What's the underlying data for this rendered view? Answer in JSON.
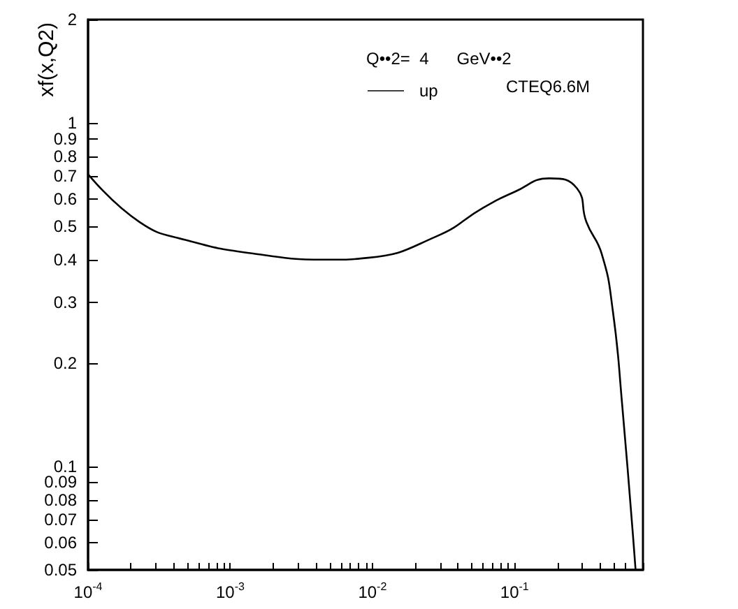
{
  "chart_data": {
    "type": "line",
    "ylabel": "xf(x,Q2)",
    "annotations": [
      "Q••2=  4      GeV••2",
      "CTEQ6.6M"
    ],
    "series": [
      {
        "name": "up",
        "color": "#000000",
        "x": [
          0.0001,
          0.00023,
          0.00049,
          0.0015,
          0.005,
          0.0093,
          0.029,
          0.06,
          0.1,
          0.176,
          0.275,
          0.32,
          0.41,
          0.49,
          0.57,
          0.71
        ],
        "values": [
          0.71,
          0.515,
          0.456,
          0.416,
          0.4,
          0.405,
          0.47,
          0.566,
          0.63,
          0.69,
          0.645,
          0.515,
          0.416,
          0.286,
          0.153,
          0.05
        ]
      }
    ],
    "log": "xy",
    "xlim": [
      0.0001,
      0.8
    ],
    "xticks": [
      {
        "value": 0.0001,
        "label": "10$^{-4}$"
      },
      {
        "value": 0.0002,
        "label": null
      },
      {
        "value": 0.0003,
        "label": null
      },
      {
        "value": 0.0004,
        "label": null
      },
      {
        "value": 0.0005,
        "label": null
      },
      {
        "value": 0.0006,
        "label": null
      },
      {
        "value": 0.0007,
        "label": null
      },
      {
        "value": 0.0008,
        "label": null
      },
      {
        "value": 0.0009,
        "label": null
      },
      {
        "value": 0.001,
        "label": "10$^{-3}$"
      },
      {
        "value": 0.002,
        "label": null
      },
      {
        "value": 0.003,
        "label": null
      },
      {
        "value": 0.004,
        "label": null
      },
      {
        "value": 0.005,
        "label": null
      },
      {
        "value": 0.006,
        "label": null
      },
      {
        "value": 0.007,
        "label": null
      },
      {
        "value": 0.008,
        "label": null
      },
      {
        "value": 0.009,
        "label": null
      },
      {
        "value": 0.01,
        "label": "10$^{-2}$"
      },
      {
        "value": 0.02,
        "label": null
      },
      {
        "value": 0.03,
        "label": null
      },
      {
        "value": 0.04,
        "label": null
      },
      {
        "value": 0.05,
        "label": null
      },
      {
        "value": 0.06,
        "label": null
      },
      {
        "value": 0.07,
        "label": null
      },
      {
        "value": 0.08,
        "label": null
      },
      {
        "value": 0.09,
        "label": null
      },
      {
        "value": 0.1,
        "label": "10$^{-1}$"
      },
      {
        "value": 0.2,
        "label": null
      },
      {
        "value": 0.3,
        "label": null
      },
      {
        "value": 0.4,
        "label": null
      },
      {
        "value": 0.5,
        "label": null
      },
      {
        "value": 0.6,
        "label": null
      },
      {
        "value": 0.7,
        "label": null
      },
      {
        "value": 0.8,
        "label": null
      }
    ],
    "ylim": [
      0.05,
      2
    ],
    "yticks": [
      0.05,
      0.06,
      0.07,
      0.08,
      0.09,
      0.1,
      0.2,
      0.3,
      0.4,
      0.5,
      0.6,
      0.7,
      0.8,
      0.9,
      1,
      2
    ],
    "grid": false,
    "legend": "top",
    "marker": "none",
    "line_style": "solid"
  }
}
